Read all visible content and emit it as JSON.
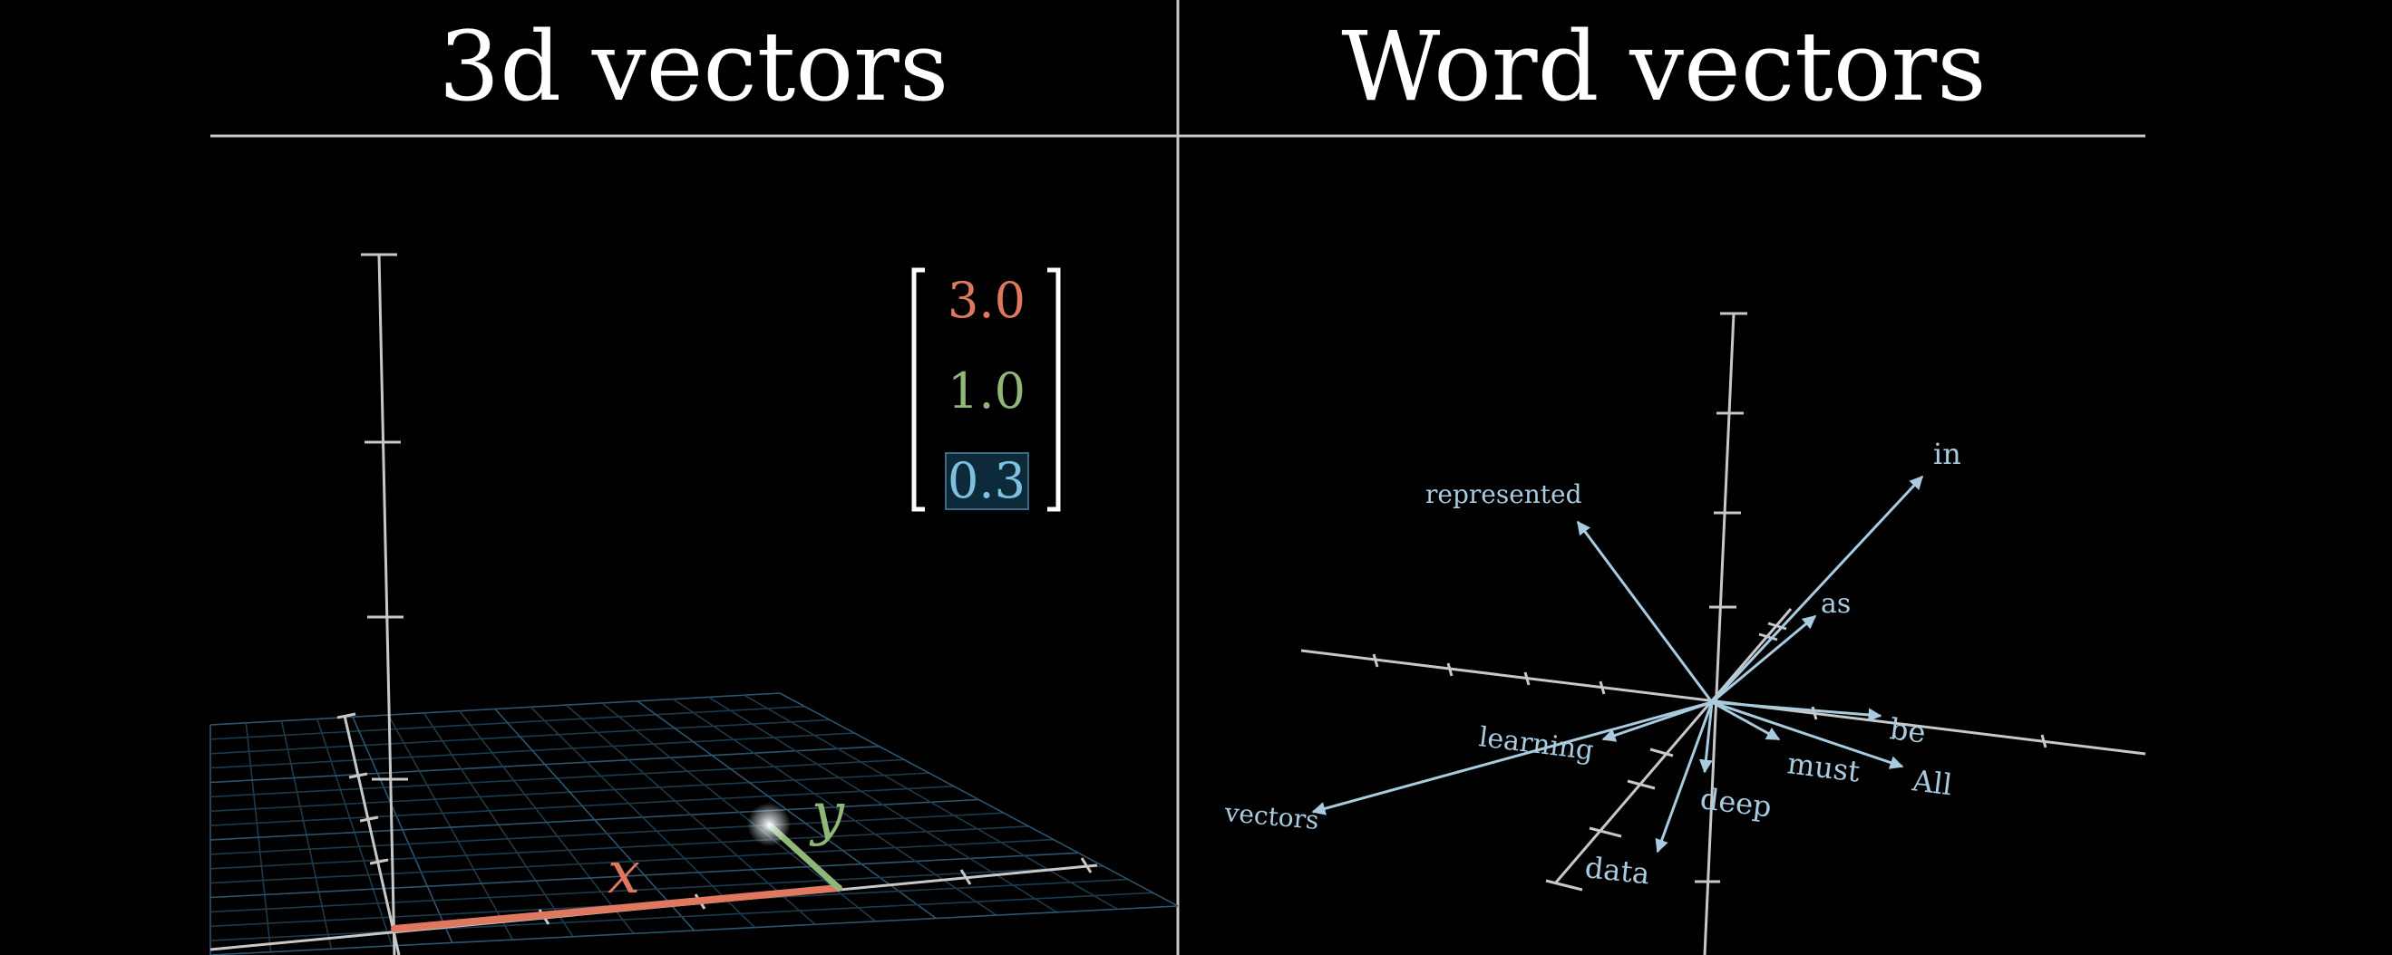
{
  "titles": {
    "left": "3d vectors",
    "right": "Word vectors"
  },
  "vector3d": {
    "components": [
      "3.0",
      "1.0",
      "0.3"
    ],
    "axis_x_label": "x",
    "axis_y_label": "y"
  },
  "words": [
    "in",
    "represented",
    "as",
    "be",
    "must",
    "All",
    "learning",
    "deep",
    "data",
    "vectors"
  ],
  "colors": {
    "background": "#000000",
    "divider": "#c8c8c8",
    "x_component": "#e07860",
    "y_component": "#8fb878",
    "z_component": "#7fc0e0",
    "word_vector": "#a9cbe0",
    "grid": "#1d3a4c"
  }
}
